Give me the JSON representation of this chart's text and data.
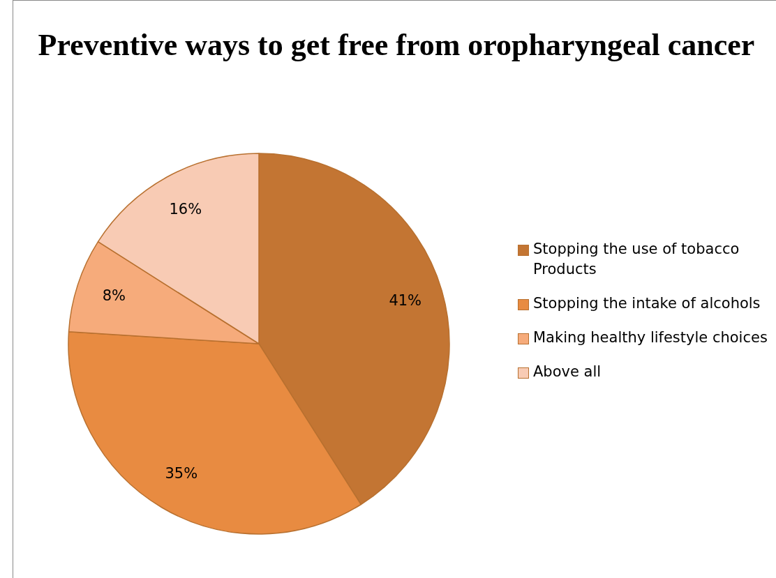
{
  "chart_data": {
    "type": "pie",
    "title": "Preventive ways to get free from oropharyngeal cancer",
    "categories": [
      "Stopping the use of tobacco Products",
      "Stopping the intake of alcohols",
      "Making healthy lifestyle choices",
      "Above all"
    ],
    "values": [
      41,
      35,
      8,
      16
    ],
    "colors": [
      "#c37533",
      "#e88b41",
      "#f6ab7b",
      "#f8cbb4"
    ],
    "value_labels": [
      "41%",
      "35%",
      "8%",
      "16%"
    ],
    "legend": "right"
  }
}
